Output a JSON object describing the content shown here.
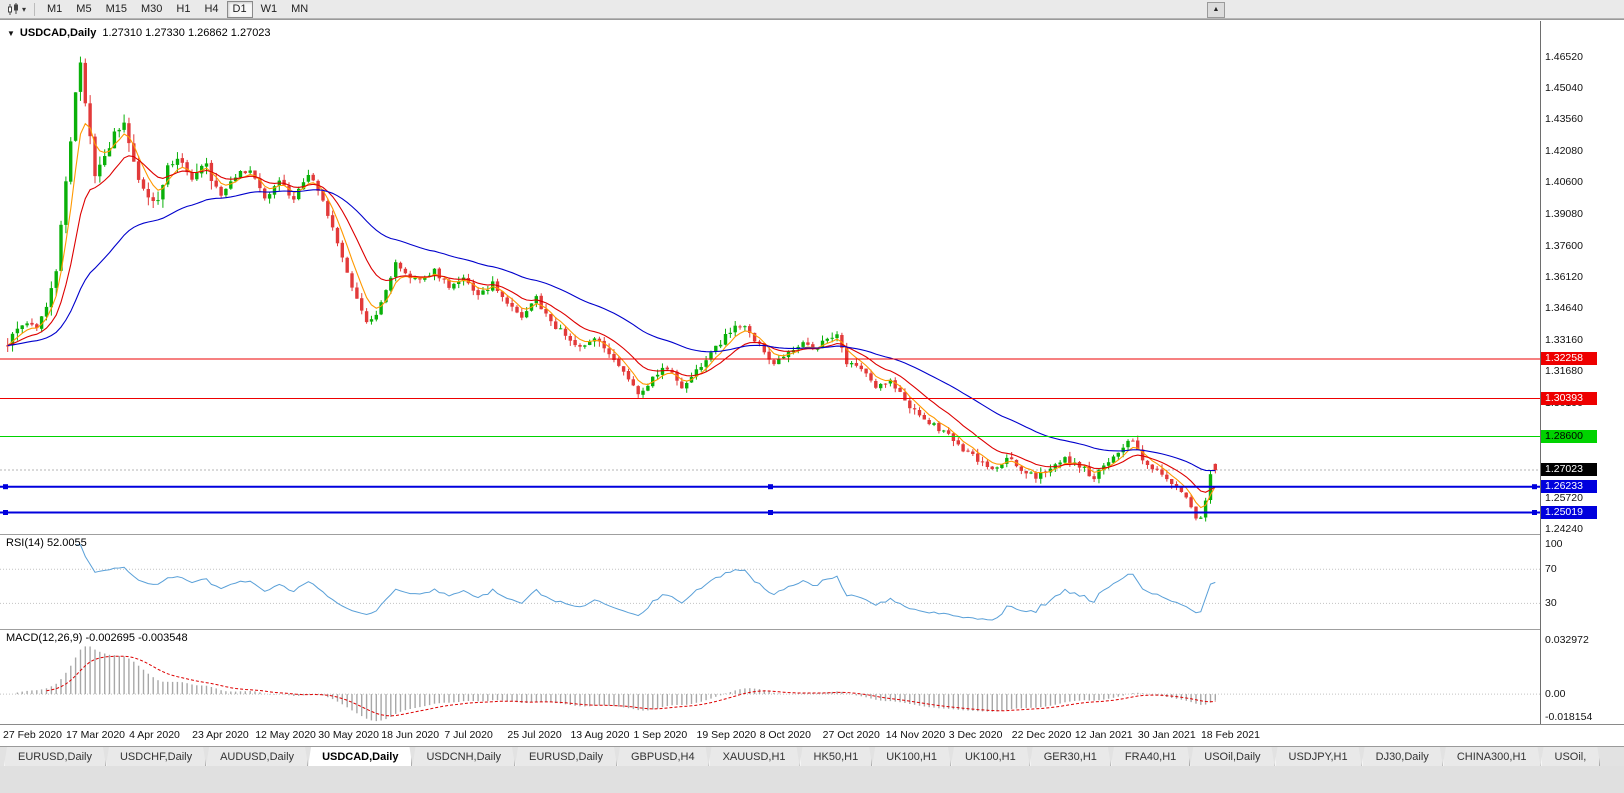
{
  "toolbar": {
    "timeframes": [
      "M1",
      "M5",
      "M15",
      "M30",
      "H1",
      "H4",
      "D1",
      "W1",
      "MN"
    ],
    "active_timeframe": "D1",
    "dropdown_icon": "▾",
    "scroll_up_icon": "▲"
  },
  "chart": {
    "collapse_icon": "▼",
    "symbol": "USDCAD,Daily",
    "ohlc": "1.27310 1.27330 1.26862 1.27023"
  },
  "indicators": {
    "rsi_label": "RSI(14) 52.0055",
    "macd_label": "MACD(12,26,9) -0.002695 -0.003548"
  },
  "price_scale": {
    "scale_labels": [
      "1.46520",
      "1.45040",
      "1.43560",
      "1.42080",
      "1.40600",
      "1.39080",
      "1.37600",
      "1.36120",
      "1.34640",
      "1.33160",
      "1.31680",
      "1.30190",
      "1.25720",
      "1.24240"
    ],
    "line_labels": [
      {
        "text": "1.32258",
        "bg": "#ee0000",
        "fg": "#ffffff"
      },
      {
        "text": "1.30393",
        "bg": "#ee0000",
        "fg": "#ffffff"
      },
      {
        "text": "1.28600",
        "bg": "#00d300",
        "fg": "#000000"
      },
      {
        "text": "1.27023",
        "bg": "#000000",
        "fg": "#ffffff"
      },
      {
        "text": "1.26233",
        "bg": "#0000dd",
        "fg": "#ffffff"
      },
      {
        "text": "1.25019",
        "bg": "#0000dd",
        "fg": "#ffffff"
      }
    ]
  },
  "date_labels": [
    "27 Feb 2020",
    "17 Mar 2020",
    "4 Apr 2020",
    "23 Apr 2020",
    "12 May 2020",
    "30 May 2020",
    "18 Jun 2020",
    "7 Jul 2020",
    "25 Jul 2020",
    "13 Aug 2020",
    "1 Sep 2020",
    "19 Sep 2020",
    "8 Oct 2020",
    "27 Oct 2020",
    "14 Nov 2020",
    "3 Dec 2020",
    "22 Dec 2020",
    "12 Jan 2021",
    "30 Jan 2021",
    "18 Feb 2021"
  ],
  "tabs": {
    "items": [
      "EURUSD,Daily",
      "USDCHF,Daily",
      "AUDUSD,Daily",
      "USDCAD,Daily",
      "USDCNH,Daily",
      "EURUSD,Daily",
      "GBPUSD,H4",
      "XAUUSD,H1",
      "HK50,H1",
      "UK100,H1",
      "UK100,H1",
      "GER30,H1",
      "FRA40,H1",
      "USOil,Daily",
      "USDJPY,H1",
      "DJ30,Daily",
      "CHINA300,H1",
      "USOil,"
    ],
    "active_index": 3
  },
  "chart_data": {
    "type": "candlestick",
    "symbol": "USDCAD",
    "timeframe": "Daily",
    "n_candles": 250,
    "label_step": 13,
    "y_range": [
      1.2405,
      1.482
    ],
    "current_price": 1.27023,
    "colors": {
      "up": "#0ab00a",
      "down": "#e23a3a"
    },
    "noise": {
      "seed": 97,
      "split": 45,
      "early_amp": 0.0048,
      "late_amp": 0.0028
    },
    "peak": {
      "idx": 15,
      "high": 1.4652
    },
    "last_candle": {
      "open": 1.2731,
      "high": 1.2733,
      "low": 1.26862,
      "close": 1.27023
    },
    "price_waypoints": [
      [
        0,
        1.331
      ],
      [
        3,
        1.34
      ],
      [
        6,
        1.336
      ],
      [
        8,
        1.348
      ],
      [
        10,
        1.365
      ],
      [
        12,
        1.405
      ],
      [
        14,
        1.448
      ],
      [
        15,
        1.462
      ],
      [
        16,
        1.445
      ],
      [
        18,
        1.409
      ],
      [
        20,
        1.418
      ],
      [
        22,
        1.43
      ],
      [
        24,
        1.436
      ],
      [
        26,
        1.415
      ],
      [
        28,
        1.402
      ],
      [
        31,
        1.398
      ],
      [
        33,
        1.415
      ],
      [
        35,
        1.418
      ],
      [
        38,
        1.408
      ],
      [
        41,
        1.413
      ],
      [
        44,
        1.399
      ],
      [
        47,
        1.409
      ],
      [
        50,
        1.412
      ],
      [
        53,
        1.398
      ],
      [
        56,
        1.406
      ],
      [
        59,
        1.398
      ],
      [
        62,
        1.41
      ],
      [
        64,
        1.402
      ],
      [
        66,
        1.39
      ],
      [
        68,
        1.378
      ],
      [
        70,
        1.362
      ],
      [
        72,
        1.35
      ],
      [
        74,
        1.339
      ],
      [
        76,
        1.342
      ],
      [
        78,
        1.356
      ],
      [
        80,
        1.368
      ],
      [
        82,
        1.362
      ],
      [
        85,
        1.359
      ],
      [
        88,
        1.364
      ],
      [
        91,
        1.356
      ],
      [
        94,
        1.361
      ],
      [
        97,
        1.353
      ],
      [
        100,
        1.358
      ],
      [
        103,
        1.348
      ],
      [
        106,
        1.342
      ],
      [
        109,
        1.351
      ],
      [
        112,
        1.34
      ],
      [
        115,
        1.334
      ],
      [
        118,
        1.328
      ],
      [
        121,
        1.333
      ],
      [
        124,
        1.324
      ],
      [
        127,
        1.318
      ],
      [
        130,
        1.306
      ],
      [
        133,
        1.313
      ],
      [
        136,
        1.319
      ],
      [
        139,
        1.309
      ],
      [
        142,
        1.317
      ],
      [
        145,
        1.325
      ],
      [
        148,
        1.333
      ],
      [
        150,
        1.339
      ],
      [
        152,
        1.338
      ],
      [
        155,
        1.329
      ],
      [
        158,
        1.32
      ],
      [
        161,
        1.326
      ],
      [
        164,
        1.331
      ],
      [
        167,
        1.327
      ],
      [
        169,
        1.333
      ],
      [
        171,
        1.334
      ],
      [
        173,
        1.32
      ],
      [
        176,
        1.318
      ],
      [
        179,
        1.309
      ],
      [
        182,
        1.313
      ],
      [
        185,
        1.302
      ],
      [
        188,
        1.296
      ],
      [
        191,
        1.291
      ],
      [
        194,
        1.286
      ],
      [
        197,
        1.28
      ],
      [
        200,
        1.275
      ],
      [
        203,
        1.27
      ],
      [
        206,
        1.276
      ],
      [
        209,
        1.271
      ],
      [
        212,
        1.267
      ],
      [
        215,
        1.271
      ],
      [
        218,
        1.276
      ],
      [
        221,
        1.272
      ],
      [
        224,
        1.267
      ],
      [
        227,
        1.273
      ],
      [
        230,
        1.282
      ],
      [
        232,
        1.284
      ],
      [
        234,
        1.276
      ],
      [
        236,
        1.27
      ],
      [
        238,
        1.268
      ],
      [
        240,
        1.264
      ],
      [
        242,
        1.26
      ],
      [
        244,
        1.253
      ],
      [
        245,
        1.248
      ],
      [
        246,
        1.2465
      ],
      [
        247,
        1.256
      ],
      [
        248,
        1.268
      ],
      [
        249,
        1.27023
      ]
    ],
    "moving_averages": [
      {
        "period": 5,
        "color": "#ff9900"
      },
      {
        "period": 13,
        "color": "#dd0000"
      },
      {
        "period": 40,
        "color": "#0000cc"
      }
    ],
    "hlines": [
      {
        "price": 1.32258,
        "color": "#ee0000",
        "width": 1,
        "handles": false
      },
      {
        "price": 1.30393,
        "color": "#ee0000",
        "width": 1,
        "handles": false
      },
      {
        "price": 1.286,
        "color": "#00d300",
        "width": 1,
        "handles": false
      },
      {
        "price": 1.26233,
        "color": "#0000dd",
        "width": 2,
        "handles": true
      },
      {
        "price": 1.25019,
        "color": "#0000dd",
        "width": 2,
        "handles": true
      }
    ],
    "rsi": {
      "period": 14,
      "current": 52.0055,
      "color": "#5aa0d8",
      "levels": [
        "100",
        "70",
        "30"
      ]
    },
    "macd": {
      "fast": 12,
      "slow": 26,
      "signal": 9,
      "main_current": -0.002695,
      "signal_current": -0.003548,
      "axis_max": 0.039,
      "axis_min": -0.0182,
      "scale_labels": [
        "0.032972",
        "0.00",
        "-0.018154"
      ],
      "hist_color": "#a8a8a8",
      "signal_color": "#dd0000"
    }
  }
}
